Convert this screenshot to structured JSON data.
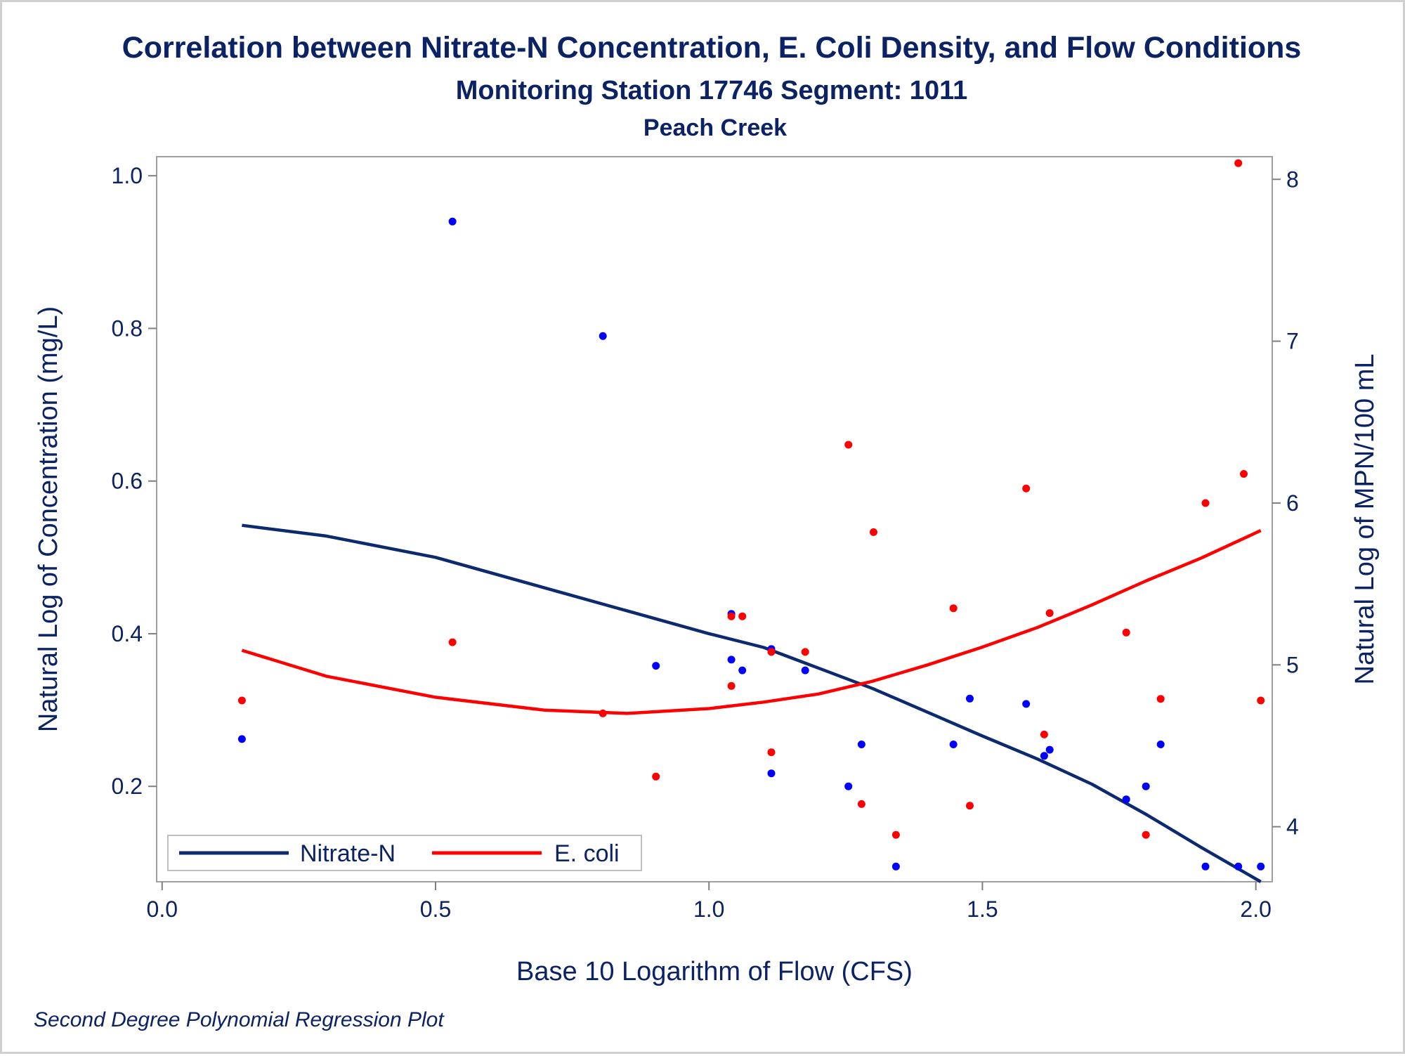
{
  "chart_data": {
    "type": "scatter",
    "title": "Correlation between Nitrate-N Concentration, E. Coli Density, and Flow Conditions",
    "subtitle": "Monitoring Station 17746 Segment: 1011",
    "subtitle2": "Peach Creek",
    "footnote": "Second Degree Polynomial Regression Plot",
    "xlabel": "Base 10 Logarithm of Flow (CFS)",
    "ylabel_left": "Natural Log of Concentration (mg/L)",
    "ylabel_right": "Natural Log of MPN/100 mL",
    "xlim": [
      -0.01,
      2.03
    ],
    "ylim_left": [
      0.075,
      1.025
    ],
    "ylim_right": [
      3.66,
      8.14
    ],
    "x_ticks": [
      0.0,
      0.5,
      1.0,
      1.5,
      2.0
    ],
    "x_tick_labels": [
      "0.0",
      "0.5",
      "1.0",
      "1.5",
      "2.0"
    ],
    "y_left_ticks": [
      0.2,
      0.4,
      0.6,
      0.8,
      1.0
    ],
    "y_left_tick_labels": [
      "0.2",
      "0.4",
      "0.6",
      "0.8",
      "1.0"
    ],
    "y_right_ticks": [
      4,
      5,
      6,
      7,
      8
    ],
    "y_right_tick_labels": [
      "4",
      "5",
      "6",
      "7",
      "8"
    ],
    "grid": false,
    "legend": {
      "placement": "bottom-left",
      "entries": [
        "Nitrate-N",
        "E. coli"
      ]
    },
    "colors": {
      "nitrate": "#0b2a6f",
      "ecoli": "#ff0000",
      "nitrate_points": "#0000ff",
      "ecoli_points": "#ff0000",
      "text": "#0b2264"
    },
    "series": [
      {
        "name": "Nitrate-N",
        "axis": "left",
        "points": [
          [
            0.146,
            0.262
          ],
          [
            0.531,
            0.94
          ],
          [
            0.806,
            0.79
          ],
          [
            0.903,
            0.358
          ],
          [
            1.041,
            0.426
          ],
          [
            1.041,
            0.366
          ],
          [
            1.061,
            0.352
          ],
          [
            1.114,
            0.38
          ],
          [
            1.114,
            0.217
          ],
          [
            1.176,
            0.352
          ],
          [
            1.255,
            0.2
          ],
          [
            1.279,
            0.255
          ],
          [
            1.342,
            0.095
          ],
          [
            1.447,
            0.255
          ],
          [
            1.477,
            0.315
          ],
          [
            1.58,
            0.308
          ],
          [
            1.613,
            0.24
          ],
          [
            1.623,
            0.248
          ],
          [
            1.763,
            0.183
          ],
          [
            1.799,
            0.2
          ],
          [
            1.826,
            0.255
          ],
          [
            1.908,
            0.095
          ],
          [
            1.968,
            0.095
          ],
          [
            2.009,
            0.095
          ]
        ],
        "fit": [
          [
            0.146,
            0.542
          ],
          [
            0.3,
            0.528
          ],
          [
            0.5,
            0.5
          ],
          [
            0.7,
            0.46
          ],
          [
            0.9,
            0.42
          ],
          [
            1.0,
            0.4
          ],
          [
            1.1,
            0.382
          ],
          [
            1.2,
            0.355
          ],
          [
            1.3,
            0.328
          ],
          [
            1.4,
            0.297
          ],
          [
            1.5,
            0.266
          ],
          [
            1.6,
            0.236
          ],
          [
            1.7,
            0.203
          ],
          [
            1.8,
            0.163
          ],
          [
            1.9,
            0.12
          ],
          [
            2.009,
            0.075
          ]
        ]
      },
      {
        "name": "E. coli",
        "axis": "right",
        "points": [
          [
            0.146,
            4.78
          ],
          [
            0.531,
            5.14
          ],
          [
            0.806,
            4.7
          ],
          [
            0.903,
            4.31
          ],
          [
            1.041,
            4.87
          ],
          [
            1.041,
            5.3
          ],
          [
            1.061,
            5.3
          ],
          [
            1.114,
            5.08
          ],
          [
            1.114,
            4.46
          ],
          [
            1.176,
            5.08
          ],
          [
            1.255,
            6.36
          ],
          [
            1.279,
            4.14
          ],
          [
            1.301,
            5.82
          ],
          [
            1.342,
            3.95
          ],
          [
            1.447,
            5.35
          ],
          [
            1.477,
            4.13
          ],
          [
            1.58,
            6.09
          ],
          [
            1.613,
            4.57
          ],
          [
            1.623,
            5.32
          ],
          [
            1.763,
            5.2
          ],
          [
            1.799,
            3.95
          ],
          [
            1.826,
            4.79
          ],
          [
            1.908,
            6.0
          ],
          [
            1.968,
            8.1
          ],
          [
            1.978,
            6.18
          ],
          [
            2.009,
            4.78
          ]
        ],
        "fit": [
          [
            0.146,
            5.09
          ],
          [
            0.3,
            4.93
          ],
          [
            0.5,
            4.8
          ],
          [
            0.7,
            4.72
          ],
          [
            0.85,
            4.7
          ],
          [
            1.0,
            4.73
          ],
          [
            1.1,
            4.77
          ],
          [
            1.2,
            4.82
          ],
          [
            1.3,
            4.9
          ],
          [
            1.4,
            5.0
          ],
          [
            1.5,
            5.11
          ],
          [
            1.6,
            5.23
          ],
          [
            1.7,
            5.37
          ],
          [
            1.8,
            5.52
          ],
          [
            1.9,
            5.66
          ],
          [
            2.009,
            5.83
          ]
        ]
      }
    ]
  }
}
